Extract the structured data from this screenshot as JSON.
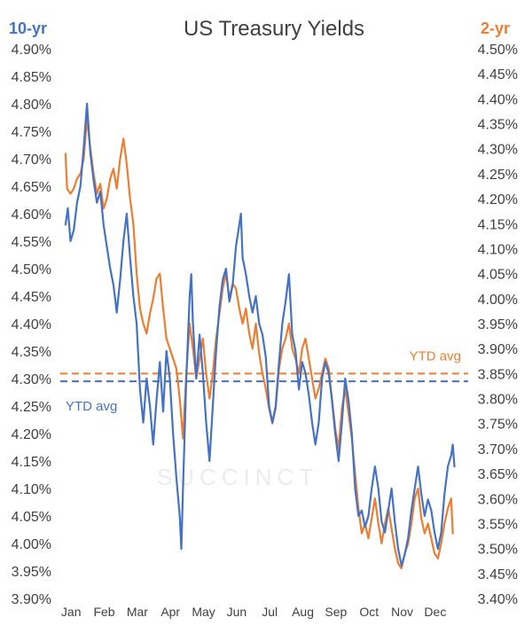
{
  "chart_data": {
    "type": "line",
    "title": "US Treasury Yields",
    "watermark": "SUCCINCT",
    "left_axis": {
      "title": "10-yr",
      "color": "#4472C4",
      "range": [
        3.9,
        4.9
      ],
      "ticks": [
        "4.90%",
        "4.85%",
        "4.80%",
        "4.75%",
        "4.70%",
        "4.65%",
        "4.60%",
        "4.55%",
        "4.50%",
        "4.45%",
        "4.40%",
        "4.35%",
        "4.30%",
        "4.25%",
        "4.20%",
        "4.15%",
        "4.10%",
        "4.05%",
        "4.00%",
        "3.95%",
        "3.90%"
      ]
    },
    "right_axis": {
      "title": "2-yr",
      "color": "#ED7D31",
      "range": [
        3.4,
        4.5
      ],
      "ticks": [
        "4.50%",
        "4.45%",
        "4.40%",
        "4.35%",
        "4.30%",
        "4.25%",
        "4.20%",
        "4.15%",
        "4.10%",
        "4.05%",
        "4.00%",
        "3.95%",
        "3.90%",
        "3.85%",
        "3.80%",
        "3.75%",
        "3.70%",
        "3.65%",
        "3.60%",
        "3.55%",
        "3.50%",
        "3.45%",
        "3.40%"
      ]
    },
    "x_axis": {
      "range": [
        0,
        12
      ],
      "months": [
        "Jan",
        "Feb",
        "Mar",
        "Apr",
        "May",
        "Jun",
        "Jul",
        "Aug",
        "Sep",
        "Oct",
        "Nov",
        "Dec"
      ]
    },
    "grid": false,
    "series": [
      {
        "name": "10-yr",
        "axis": "left",
        "color": "#4472C4",
        "points": [
          [
            0.05,
            4.58
          ],
          [
            0.12,
            4.61
          ],
          [
            0.2,
            4.55
          ],
          [
            0.3,
            4.57
          ],
          [
            0.4,
            4.62
          ],
          [
            0.5,
            4.65
          ],
          [
            0.6,
            4.72
          ],
          [
            0.7,
            4.8
          ],
          [
            0.8,
            4.71
          ],
          [
            0.9,
            4.66
          ],
          [
            1.0,
            4.62
          ],
          [
            1.1,
            4.64
          ],
          [
            1.2,
            4.58
          ],
          [
            1.3,
            4.54
          ],
          [
            1.4,
            4.5
          ],
          [
            1.5,
            4.47
          ],
          [
            1.6,
            4.42
          ],
          [
            1.7,
            4.48
          ],
          [
            1.8,
            4.55
          ],
          [
            1.9,
            4.6
          ],
          [
            2.0,
            4.52
          ],
          [
            2.1,
            4.45
          ],
          [
            2.2,
            4.4
          ],
          [
            2.3,
            4.28
          ],
          [
            2.4,
            4.22
          ],
          [
            2.5,
            4.3
          ],
          [
            2.6,
            4.25
          ],
          [
            2.7,
            4.18
          ],
          [
            2.8,
            4.26
          ],
          [
            2.9,
            4.33
          ],
          [
            3.0,
            4.24
          ],
          [
            3.1,
            4.35
          ],
          [
            3.2,
            4.3
          ],
          [
            3.3,
            4.2
          ],
          [
            3.4,
            4.12
          ],
          [
            3.5,
            4.05
          ],
          [
            3.55,
            3.99
          ],
          [
            3.6,
            4.1
          ],
          [
            3.7,
            4.3
          ],
          [
            3.8,
            4.45
          ],
          [
            3.85,
            4.49
          ],
          [
            3.9,
            4.4
          ],
          [
            4.0,
            4.3
          ],
          [
            4.1,
            4.38
          ],
          [
            4.2,
            4.31
          ],
          [
            4.3,
            4.22
          ],
          [
            4.4,
            4.15
          ],
          [
            4.5,
            4.25
          ],
          [
            4.6,
            4.35
          ],
          [
            4.7,
            4.43
          ],
          [
            4.8,
            4.48
          ],
          [
            4.9,
            4.5
          ],
          [
            5.0,
            4.44
          ],
          [
            5.1,
            4.47
          ],
          [
            5.2,
            4.54
          ],
          [
            5.3,
            4.58
          ],
          [
            5.35,
            4.6
          ],
          [
            5.4,
            4.52
          ],
          [
            5.5,
            4.49
          ],
          [
            5.6,
            4.45
          ],
          [
            5.7,
            4.42
          ],
          [
            5.8,
            4.45
          ],
          [
            5.9,
            4.4
          ],
          [
            6.0,
            4.38
          ],
          [
            6.1,
            4.34
          ],
          [
            6.2,
            4.25
          ],
          [
            6.3,
            4.22
          ],
          [
            6.4,
            4.25
          ],
          [
            6.5,
            4.33
          ],
          [
            6.6,
            4.4
          ],
          [
            6.7,
            4.44
          ],
          [
            6.8,
            4.49
          ],
          [
            6.9,
            4.38
          ],
          [
            7.0,
            4.35
          ],
          [
            7.1,
            4.28
          ],
          [
            7.2,
            4.33
          ],
          [
            7.3,
            4.31
          ],
          [
            7.4,
            4.27
          ],
          [
            7.5,
            4.22
          ],
          [
            7.6,
            4.18
          ],
          [
            7.7,
            4.22
          ],
          [
            7.8,
            4.3
          ],
          [
            7.9,
            4.33
          ],
          [
            8.0,
            4.31
          ],
          [
            8.1,
            4.26
          ],
          [
            8.2,
            4.2
          ],
          [
            8.3,
            4.15
          ],
          [
            8.4,
            4.22
          ],
          [
            8.5,
            4.3
          ],
          [
            8.6,
            4.26
          ],
          [
            8.7,
            4.2
          ],
          [
            8.8,
            4.1
          ],
          [
            8.9,
            4.05
          ],
          [
            9.0,
            4.06
          ],
          [
            9.1,
            4.03
          ],
          [
            9.2,
            4.05
          ],
          [
            9.3,
            4.1
          ],
          [
            9.4,
            4.14
          ],
          [
            9.5,
            4.1
          ],
          [
            9.6,
            4.04
          ],
          [
            9.7,
            4.02
          ],
          [
            9.8,
            4.06
          ],
          [
            9.9,
            4.1
          ],
          [
            10.0,
            4.04
          ],
          [
            10.1,
            3.99
          ],
          [
            10.2,
            3.96
          ],
          [
            10.3,
            3.98
          ],
          [
            10.4,
            4.01
          ],
          [
            10.5,
            4.06
          ],
          [
            10.6,
            4.1
          ],
          [
            10.7,
            4.14
          ],
          [
            10.8,
            4.09
          ],
          [
            10.9,
            4.05
          ],
          [
            11.0,
            4.08
          ],
          [
            11.1,
            4.06
          ],
          [
            11.2,
            4.02
          ],
          [
            11.3,
            3.99
          ],
          [
            11.4,
            4.02
          ],
          [
            11.5,
            4.09
          ],
          [
            11.6,
            4.14
          ],
          [
            11.7,
            4.16
          ],
          [
            11.75,
            4.18
          ],
          [
            11.8,
            4.14
          ]
        ]
      },
      {
        "name": "2-yr",
        "axis": "right",
        "color": "#ED7D31",
        "points": [
          [
            0.05,
            4.29
          ],
          [
            0.1,
            4.22
          ],
          [
            0.2,
            4.21
          ],
          [
            0.3,
            4.22
          ],
          [
            0.4,
            4.24
          ],
          [
            0.5,
            4.25
          ],
          [
            0.6,
            4.28
          ],
          [
            0.7,
            4.36
          ],
          [
            0.8,
            4.3
          ],
          [
            0.9,
            4.25
          ],
          [
            1.0,
            4.21
          ],
          [
            1.1,
            4.23
          ],
          [
            1.2,
            4.18
          ],
          [
            1.3,
            4.2
          ],
          [
            1.4,
            4.24
          ],
          [
            1.5,
            4.26
          ],
          [
            1.6,
            4.22
          ],
          [
            1.7,
            4.28
          ],
          [
            1.8,
            4.32
          ],
          [
            1.9,
            4.27
          ],
          [
            2.0,
            4.2
          ],
          [
            2.1,
            4.15
          ],
          [
            2.2,
            4.05
          ],
          [
            2.3,
            3.98
          ],
          [
            2.4,
            3.95
          ],
          [
            2.5,
            3.93
          ],
          [
            2.6,
            3.97
          ],
          [
            2.7,
            4.0
          ],
          [
            2.8,
            4.04
          ],
          [
            2.9,
            4.05
          ],
          [
            3.0,
            3.98
          ],
          [
            3.1,
            3.92
          ],
          [
            3.2,
            3.9
          ],
          [
            3.3,
            3.88
          ],
          [
            3.4,
            3.86
          ],
          [
            3.5,
            3.8
          ],
          [
            3.6,
            3.72
          ],
          [
            3.7,
            3.85
          ],
          [
            3.8,
            3.95
          ],
          [
            3.9,
            3.9
          ],
          [
            4.0,
            3.84
          ],
          [
            4.1,
            3.88
          ],
          [
            4.2,
            3.92
          ],
          [
            4.3,
            3.85
          ],
          [
            4.4,
            3.8
          ],
          [
            4.5,
            3.85
          ],
          [
            4.6,
            3.92
          ],
          [
            4.7,
            3.97
          ],
          [
            4.8,
            4.02
          ],
          [
            4.9,
            4.05
          ],
          [
            5.0,
            4.0
          ],
          [
            5.1,
            4.03
          ],
          [
            5.2,
            4.02
          ],
          [
            5.3,
            3.98
          ],
          [
            5.4,
            3.95
          ],
          [
            5.5,
            3.98
          ],
          [
            5.6,
            3.93
          ],
          [
            5.7,
            3.9
          ],
          [
            5.8,
            3.95
          ],
          [
            5.9,
            3.89
          ],
          [
            6.0,
            3.85
          ],
          [
            6.1,
            3.82
          ],
          [
            6.2,
            3.78
          ],
          [
            6.3,
            3.75
          ],
          [
            6.4,
            3.78
          ],
          [
            6.5,
            3.86
          ],
          [
            6.6,
            3.9
          ],
          [
            6.7,
            3.92
          ],
          [
            6.8,
            3.95
          ],
          [
            6.9,
            3.9
          ],
          [
            7.0,
            3.88
          ],
          [
            7.1,
            3.85
          ],
          [
            7.2,
            3.9
          ],
          [
            7.3,
            3.92
          ],
          [
            7.4,
            3.88
          ],
          [
            7.5,
            3.84
          ],
          [
            7.6,
            3.8
          ],
          [
            7.7,
            3.82
          ],
          [
            7.8,
            3.85
          ],
          [
            7.9,
            3.88
          ],
          [
            8.0,
            3.86
          ],
          [
            8.1,
            3.8
          ],
          [
            8.2,
            3.74
          ],
          [
            8.3,
            3.7
          ],
          [
            8.4,
            3.78
          ],
          [
            8.5,
            3.82
          ],
          [
            8.6,
            3.77
          ],
          [
            8.7,
            3.72
          ],
          [
            8.8,
            3.65
          ],
          [
            8.9,
            3.58
          ],
          [
            9.0,
            3.53
          ],
          [
            9.1,
            3.55
          ],
          [
            9.2,
            3.52
          ],
          [
            9.3,
            3.56
          ],
          [
            9.4,
            3.6
          ],
          [
            9.5,
            3.55
          ],
          [
            9.6,
            3.51
          ],
          [
            9.7,
            3.55
          ],
          [
            9.8,
            3.58
          ],
          [
            9.9,
            3.54
          ],
          [
            10.0,
            3.5
          ],
          [
            10.1,
            3.47
          ],
          [
            10.2,
            3.46
          ],
          [
            10.3,
            3.49
          ],
          [
            10.4,
            3.51
          ],
          [
            10.5,
            3.55
          ],
          [
            10.6,
            3.6
          ],
          [
            10.7,
            3.62
          ],
          [
            10.8,
            3.56
          ],
          [
            10.9,
            3.53
          ],
          [
            11.0,
            3.55
          ],
          [
            11.1,
            3.52
          ],
          [
            11.2,
            3.49
          ],
          [
            11.3,
            3.48
          ],
          [
            11.4,
            3.51
          ],
          [
            11.5,
            3.55
          ],
          [
            11.6,
            3.58
          ],
          [
            11.7,
            3.6
          ],
          [
            11.75,
            3.53
          ]
        ]
      }
    ],
    "ytd_averages": [
      {
        "label": "YTD avg",
        "axis": "left",
        "value": 4.295,
        "color": "#4472C4"
      },
      {
        "label": "YTD avg",
        "axis": "right",
        "value": 3.85,
        "color": "#ED7D31"
      }
    ]
  }
}
